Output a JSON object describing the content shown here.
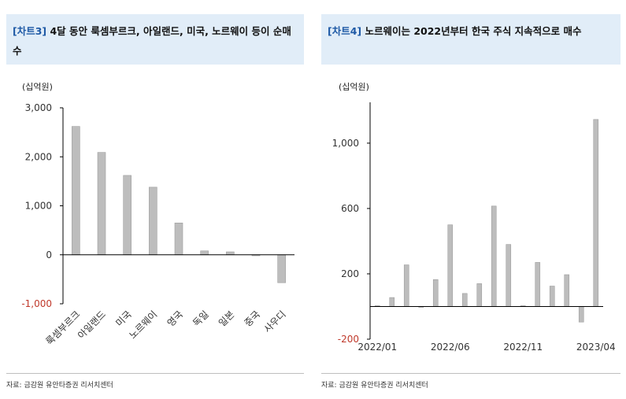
{
  "left": {
    "title_tag": "[차트3]",
    "title_text": "4달 동안 룩셈부르크, 아일랜드, 미국, 노르웨이 등이 순매수",
    "source": "자료: 금감원 유안타증권 리서치센터"
  },
  "right": {
    "title_tag": "[차트4]",
    "title_text": "노르웨이는 2022년부터 한국 주식 지속적으로 매수",
    "source": "자료: 금감원 유안타증권 리서치센터"
  },
  "chart_data": [
    {
      "type": "bar",
      "unit_label": "(십억원)",
      "categories": [
        "룩셈부르크",
        "아일랜드",
        "미국",
        "노르웨이",
        "영국",
        "독일",
        "일본",
        "중국",
        "사우디"
      ],
      "values": [
        2620,
        2090,
        1620,
        1380,
        650,
        80,
        60,
        -20,
        -570
      ],
      "ylim": [
        -1000,
        3000
      ],
      "yticks": [
        -1000,
        0,
        1000,
        2000,
        3000
      ],
      "ytick_labels": [
        "-1,000",
        "0",
        "1,000",
        "2,000",
        "3,000"
      ],
      "bar_color": "#bdbdbd",
      "negative_tick_color": "#c0392b"
    },
    {
      "type": "bar",
      "unit_label": "(십억원)",
      "x": [
        "2022/01",
        "2022/02",
        "2022/03",
        "2022/04",
        "2022/05",
        "2022/06",
        "2022/07",
        "2022/08",
        "2022/09",
        "2022/10",
        "2022/11",
        "2022/12",
        "2023/01",
        "2023/02",
        "2023/03",
        "2023/04"
      ],
      "values": [
        5,
        55,
        255,
        -5,
        165,
        500,
        80,
        140,
        615,
        380,
        5,
        270,
        125,
        195,
        -95,
        1145
      ],
      "xtick_labels": [
        "2022/01",
        "2022/06",
        "2022/11",
        "2023/04"
      ],
      "xtick_positions": [
        "2022/01",
        "2022/06",
        "2022/11",
        "2023/04"
      ],
      "ylim": [
        -200,
        1250
      ],
      "yticks": [
        -200,
        200,
        600,
        1000
      ],
      "ytick_labels": [
        "-200",
        "200",
        "600",
        "1,000"
      ],
      "bar_color": "#bdbdbd",
      "negative_tick_color": "#c0392b"
    }
  ]
}
